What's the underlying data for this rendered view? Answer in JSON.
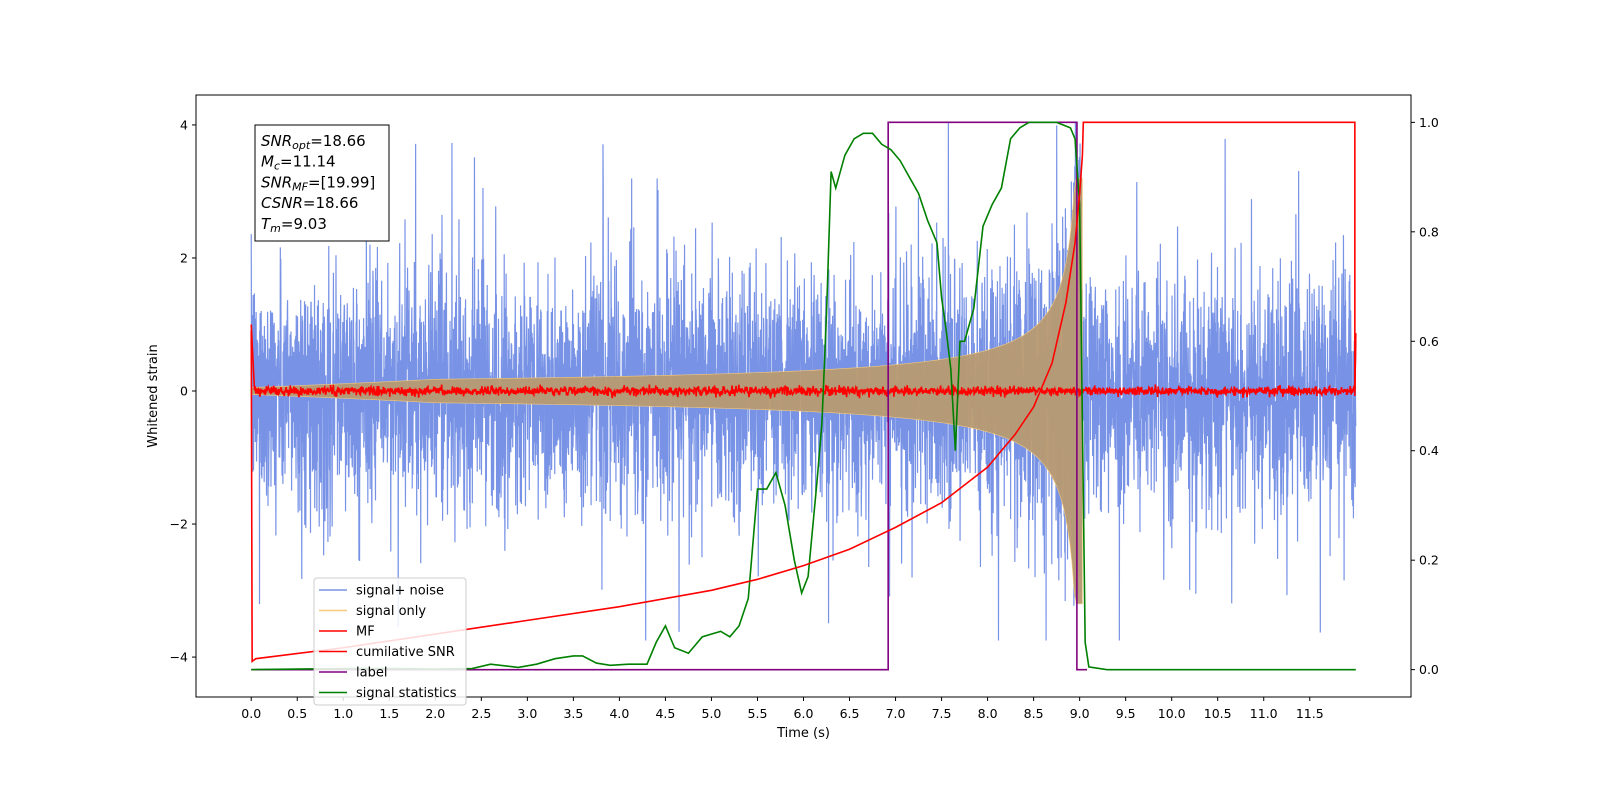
{
  "chart_data": {
    "type": "line",
    "xlabel": "Time (s)",
    "ylabel_left": "Whitened strain",
    "ylabel_right": "",
    "xlim": [
      -0.6,
      12.6
    ],
    "ylim_left": [
      -4.6,
      4.45
    ],
    "ylim_right": [
      -0.05,
      1.05
    ],
    "x_ticks": [
      "0.0",
      "0.5",
      "1.0",
      "1.5",
      "2.0",
      "2.5",
      "3.0",
      "3.5",
      "4.0",
      "4.5",
      "5.0",
      "5.5",
      "6.0",
      "6.5",
      "7.0",
      "7.5",
      "8.0",
      "8.5",
      "9.0",
      "9.5",
      "10.0",
      "10.5",
      "11.0",
      "11.5"
    ],
    "y_ticks_left": [
      "4",
      "2",
      "0",
      "−2",
      "−4"
    ],
    "y_ticks_right": [
      "1.0",
      "0.8",
      "0.6",
      "0.4",
      "0.2",
      "0.0"
    ],
    "grid": false,
    "legend_position": "lower-left",
    "annotation": {
      "snr_opt": {
        "sym": "SNR",
        "sub": "opt",
        "val": "=18.66"
      },
      "mc": {
        "sym": "M",
        "sub": "c",
        "val": "=11.14"
      },
      "snr_mf": {
        "sym": "SNR",
        "sub": "MF",
        "val": "=[19.99]"
      },
      "csnr": {
        "sym": "CSNR",
        "sub": "",
        "val": "=18.66"
      },
      "tm": {
        "sym": "T",
        "sub": "m",
        "val": "=9.03"
      }
    },
    "series": [
      {
        "name": "signal+ noise",
        "axis": "left",
        "color": "#7893e6",
        "description_values": {
          "t_range": [
            0.0,
            12.0
          ],
          "amplitude_envelope": [
            -3.6,
            4.05
          ]
        }
      },
      {
        "name": "signal only",
        "axis": "left",
        "color": "#f5c97a",
        "chirp": {
          "t_start": 0.0,
          "t_merge": 9.03,
          "amp_at_7s": 0.3,
          "amp_at_9s": 2.9
        }
      },
      {
        "name": "MF",
        "axis": "left",
        "color": "#ff0000",
        "noise_level": 0.05
      },
      {
        "name": "cumilative SNR",
        "axis": "right",
        "points": [
          [
            0.0,
            0.62
          ],
          [
            0.01,
            0.015
          ],
          [
            0.05,
            0.02
          ],
          [
            1,
            0.04
          ],
          [
            2,
            0.065
          ],
          [
            3,
            0.09
          ],
          [
            4,
            0.115
          ],
          [
            5,
            0.145
          ],
          [
            5.5,
            0.165
          ],
          [
            6,
            0.19
          ],
          [
            6.5,
            0.22
          ],
          [
            7,
            0.26
          ],
          [
            7.5,
            0.305
          ],
          [
            8,
            0.37
          ],
          [
            8.3,
            0.43
          ],
          [
            8.5,
            0.48
          ],
          [
            8.7,
            0.56
          ],
          [
            8.85,
            0.67
          ],
          [
            8.95,
            0.78
          ],
          [
            9.0,
            0.87
          ],
          [
            9.03,
            0.94
          ],
          [
            9.04,
            1.0
          ],
          [
            11.99,
            1.0
          ],
          [
            11.99,
            0.5
          ],
          [
            12.0,
            0.615
          ]
        ]
      },
      {
        "name": "label",
        "axis": "right",
        "color": "#800080",
        "points": [
          [
            0.0,
            0.0
          ],
          [
            6.92,
            0.0
          ],
          [
            6.92,
            1.0
          ],
          [
            8.97,
            1.0
          ],
          [
            8.97,
            0.0
          ],
          [
            9.08,
            0.0
          ]
        ]
      },
      {
        "name": "signal statistics",
        "axis": "right",
        "color": "#008000",
        "points": [
          [
            0.0,
            0.0
          ],
          [
            0.5,
            0.001
          ],
          [
            1.0,
            0.002
          ],
          [
            1.5,
            0.002
          ],
          [
            2.0,
            0.001
          ],
          [
            2.4,
            0.002
          ],
          [
            2.6,
            0.01
          ],
          [
            2.9,
            0.004
          ],
          [
            3.1,
            0.01
          ],
          [
            3.3,
            0.02
          ],
          [
            3.5,
            0.025
          ],
          [
            3.6,
            0.025
          ],
          [
            3.75,
            0.012
          ],
          [
            3.9,
            0.008
          ],
          [
            4.1,
            0.01
          ],
          [
            4.3,
            0.01
          ],
          [
            4.4,
            0.05
          ],
          [
            4.5,
            0.08
          ],
          [
            4.6,
            0.04
          ],
          [
            4.75,
            0.03
          ],
          [
            4.9,
            0.06
          ],
          [
            5.1,
            0.07
          ],
          [
            5.2,
            0.06
          ],
          [
            5.3,
            0.08
          ],
          [
            5.4,
            0.13
          ],
          [
            5.5,
            0.33
          ],
          [
            5.6,
            0.33
          ],
          [
            5.7,
            0.36
          ],
          [
            5.8,
            0.3
          ],
          [
            5.9,
            0.2
          ],
          [
            5.98,
            0.14
          ],
          [
            6.05,
            0.17
          ],
          [
            6.15,
            0.35
          ],
          [
            6.2,
            0.45
          ],
          [
            6.25,
            0.65
          ],
          [
            6.3,
            0.91
          ],
          [
            6.35,
            0.88
          ],
          [
            6.45,
            0.94
          ],
          [
            6.55,
            0.97
          ],
          [
            6.65,
            0.98
          ],
          [
            6.75,
            0.98
          ],
          [
            6.85,
            0.96
          ],
          [
            6.95,
            0.95
          ],
          [
            7.05,
            0.93
          ],
          [
            7.15,
            0.9
          ],
          [
            7.25,
            0.87
          ],
          [
            7.35,
            0.82
          ],
          [
            7.45,
            0.78
          ],
          [
            7.5,
            0.68
          ],
          [
            7.55,
            0.62
          ],
          [
            7.6,
            0.55
          ],
          [
            7.65,
            0.4
          ],
          [
            7.7,
            0.6
          ],
          [
            7.75,
            0.6
          ],
          [
            7.85,
            0.66
          ],
          [
            7.95,
            0.81
          ],
          [
            8.05,
            0.85
          ],
          [
            8.15,
            0.88
          ],
          [
            8.25,
            0.97
          ],
          [
            8.35,
            0.99
          ],
          [
            8.45,
            1.0
          ],
          [
            8.6,
            1.0
          ],
          [
            8.75,
            1.0
          ],
          [
            8.9,
            0.99
          ],
          [
            8.95,
            0.97
          ],
          [
            9.0,
            0.85
          ],
          [
            9.03,
            0.45
          ],
          [
            9.06,
            0.05
          ],
          [
            9.1,
            0.005
          ],
          [
            9.3,
            0.0
          ],
          [
            12.0,
            0.0
          ]
        ]
      }
    ]
  }
}
